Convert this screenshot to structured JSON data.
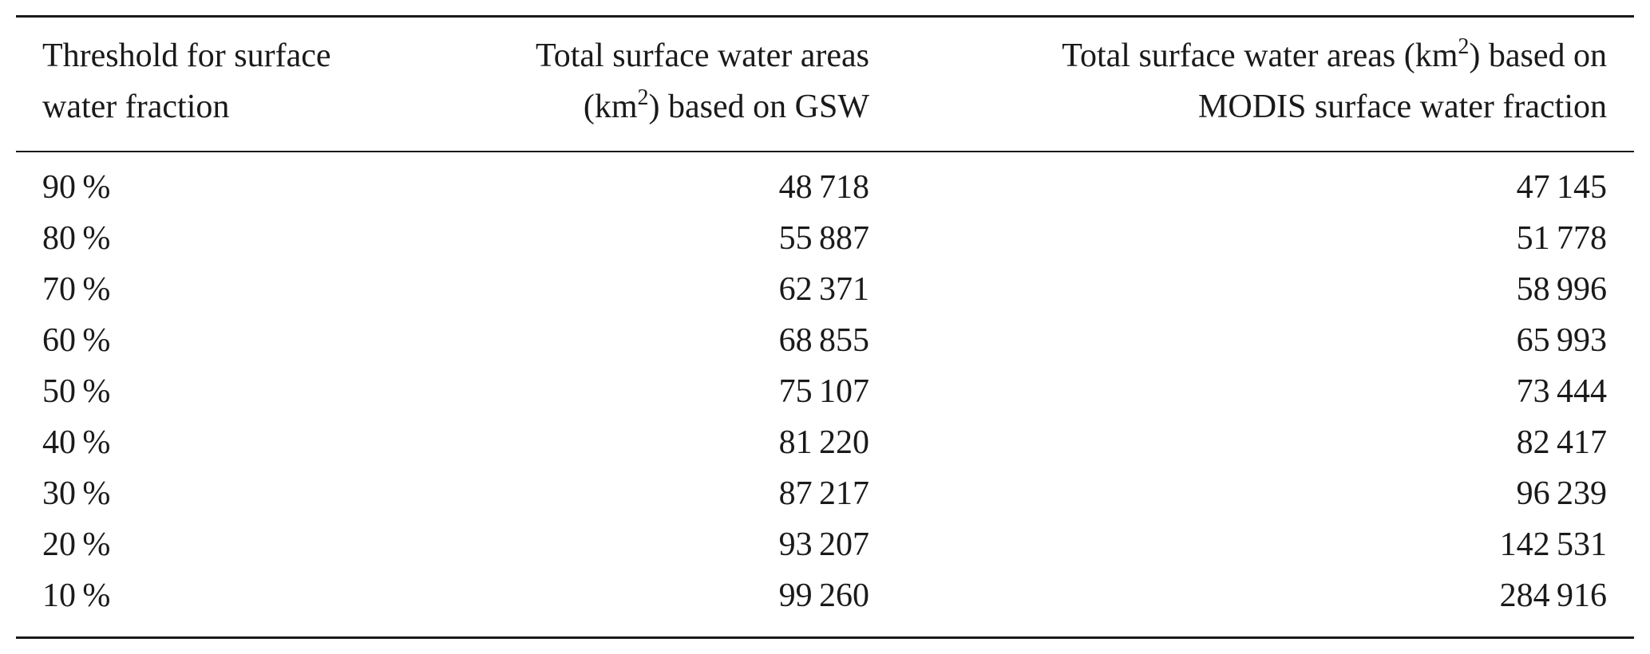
{
  "table": {
    "header": [
      [
        "Threshold for surface",
        "water fraction"
      ],
      [
        "Total surface water areas",
        "(km",
        "2",
        ") based on GSW"
      ],
      [
        "Total surface water areas (km",
        "2",
        ") based on",
        "MODIS surface water fraction"
      ]
    ],
    "rows": [
      [
        "90 %",
        "48 718",
        "47 145"
      ],
      [
        "80 %",
        "55 887",
        "51 778"
      ],
      [
        "70 %",
        "62 371",
        "58 996"
      ],
      [
        "60 %",
        "68 855",
        "65 993"
      ],
      [
        "50 %",
        "75 107",
        "73 444"
      ],
      [
        "40 %",
        "81 220",
        "82 417"
      ],
      [
        "30 %",
        "87 217",
        "96 239"
      ],
      [
        "20 %",
        "93 207",
        "142 531"
      ],
      [
        "10 %",
        "99 260",
        "284 916"
      ]
    ]
  }
}
